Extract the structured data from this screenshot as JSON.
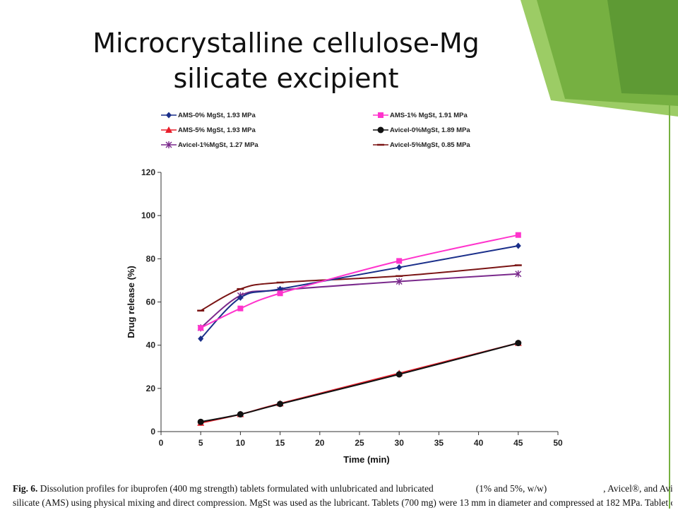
{
  "slide": {
    "title_line1": "Microcrystalline cellulose-Mg",
    "title_line2": "silicate excipient"
  },
  "chart_data": {
    "type": "line",
    "xlabel": "Time (min)",
    "ylabel": "Drug release (%)",
    "xlim": [
      0,
      50
    ],
    "ylim": [
      0,
      120
    ],
    "xticks": [
      0,
      5,
      10,
      15,
      20,
      25,
      30,
      35,
      40,
      45,
      50
    ],
    "yticks": [
      0,
      20,
      40,
      60,
      80,
      100,
      120
    ],
    "grid": false,
    "legend_position": "top",
    "x": [
      5,
      10,
      15,
      30,
      45
    ],
    "series": [
      {
        "name": "AMS-0% MgSt, 1.93 MPa",
        "color": "#1a2f8a",
        "marker": "diamond",
        "values": [
          43,
          62,
          66,
          76,
          86
        ]
      },
      {
        "name": "AMS-1% MgSt, 1.91 MPa",
        "color": "#ff33cc",
        "marker": "square",
        "values": [
          48,
          57,
          64,
          79,
          91
        ]
      },
      {
        "name": "AMS-5% MgSt, 1.93 MPa",
        "color": "#e81e2a",
        "marker": "triangle",
        "values": [
          4,
          8,
          13,
          27,
          41
        ]
      },
      {
        "name": "Avicel-0%MgSt, 1.89 MPa",
        "color": "#111111",
        "marker": "circle",
        "values": [
          4.5,
          8,
          12.8,
          26.5,
          41
        ]
      },
      {
        "name": "Avicel-1%MgSt, 1.27 MPa",
        "color": "#7a2a8c",
        "marker": "star",
        "values": [
          48,
          63,
          65.5,
          69.5,
          73
        ]
      },
      {
        "name": "Avicel-5%MgSt, 0.85 MPa",
        "color": "#7a1414",
        "marker": "dash",
        "values": [
          56,
          66,
          69,
          72,
          77
        ]
      }
    ]
  },
  "caption": {
    "label": "Fig. 6.",
    "line1": " Dissolution profiles for ibuprofen (400 mg strength) tablets formulated with unlubricated and lubricated",
    "line1_mid": "(1% and 5%, w/w)",
    "line1_end": ", Avicel®, and Avicel-Mg",
    "line2": "silicate (AMS) using physical mixing and direct compression. MgSt was used as the lubricant. Tablets (700 mg) were 13 mm in diameter and compressed at 182 MPa. Tablet crushing"
  },
  "colors": {
    "accent_green": "#76b041",
    "accent_green_dark": "#5e9a34",
    "accent_green_light": "#9ccc65"
  }
}
